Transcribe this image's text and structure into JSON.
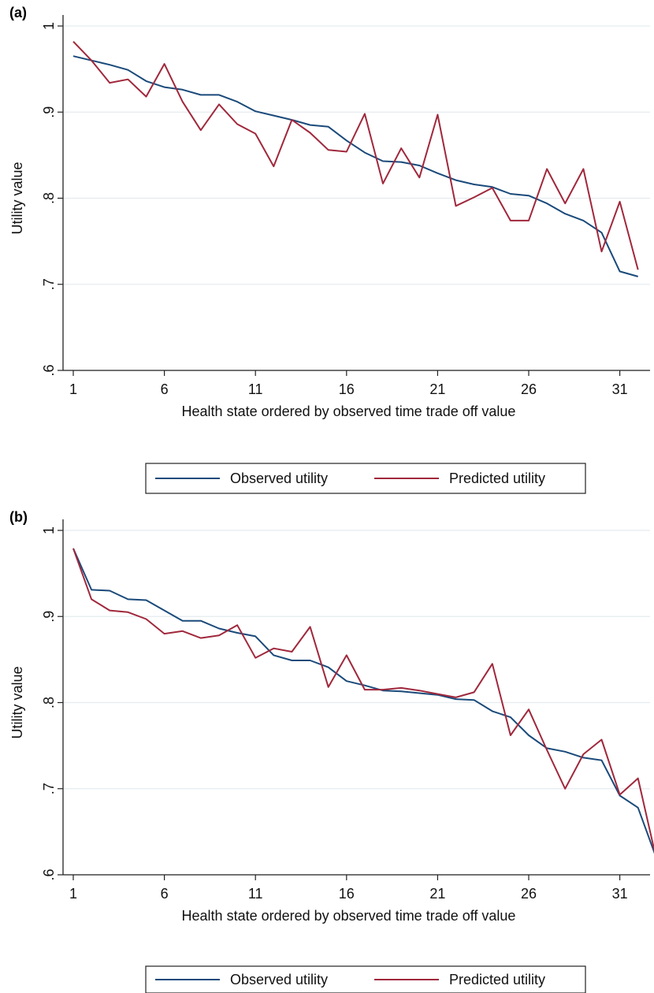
{
  "chart_data": [
    {
      "type": "line",
      "panel_label": "(a)",
      "xlabel": "Health state ordered by observed time trade off value",
      "ylabel": "Utility value",
      "xlim": [
        1,
        32
      ],
      "ylim": [
        0.6,
        1.0
      ],
      "x_ticks": [
        1,
        6,
        11,
        16,
        21,
        26,
        31
      ],
      "x_tick_labels": [
        "1",
        "6",
        "11",
        "16",
        "21",
        "26",
        "31"
      ],
      "y_ticks": [
        0.6,
        0.7,
        0.8,
        0.9,
        1.0
      ],
      "y_tick_labels": [
        ".6",
        ".7",
        ".8",
        ".9",
        "1"
      ],
      "grid": true,
      "legend_position": "bottom",
      "x": [
        1,
        2,
        3,
        4,
        5,
        6,
        7,
        8,
        9,
        10,
        11,
        12,
        13,
        14,
        15,
        16,
        17,
        18,
        19,
        20,
        21,
        22,
        23,
        24,
        25,
        26,
        27,
        28,
        29,
        30,
        31,
        32
      ],
      "series": [
        {
          "name": "Observed utility",
          "color": "#1a4a7a",
          "values": [
            0.965,
            0.96,
            0.955,
            0.949,
            0.936,
            0.929,
            0.926,
            0.92,
            0.92,
            0.912,
            0.901,
            0.896,
            0.891,
            0.885,
            0.883,
            0.867,
            0.853,
            0.843,
            0.842,
            0.838,
            0.829,
            0.821,
            0.816,
            0.813,
            0.805,
            0.803,
            0.794,
            0.782,
            0.774,
            0.76,
            0.715,
            0.709
          ]
        },
        {
          "name": "Predicted utility",
          "color": "#a0283c",
          "values": [
            0.982,
            0.96,
            0.934,
            0.938,
            0.918,
            0.956,
            0.912,
            0.879,
            0.909,
            0.886,
            0.875,
            0.837,
            0.891,
            0.876,
            0.856,
            0.854,
            0.898,
            0.817,
            0.858,
            0.824,
            0.897,
            0.791,
            0.801,
            0.812,
            0.774,
            0.774,
            0.834,
            0.794,
            0.834,
            0.738,
            0.796,
            0.717
          ]
        }
      ]
    },
    {
      "type": "line",
      "panel_label": "(b)",
      "xlabel": "Health state ordered by observed time trade off value",
      "ylabel": "Utility value",
      "xlim": [
        1,
        33
      ],
      "ylim": [
        0.6,
        1.0
      ],
      "x_ticks": [
        1,
        6,
        11,
        16,
        21,
        26,
        31
      ],
      "x_tick_labels": [
        "1",
        "6",
        "11",
        "16",
        "21",
        "26",
        "31"
      ],
      "y_ticks": [
        0.6,
        0.7,
        0.8,
        0.9,
        1.0
      ],
      "y_tick_labels": [
        ".6",
        ".7",
        ".8",
        ".9",
        "1"
      ],
      "grid": true,
      "legend_position": "bottom",
      "x": [
        1,
        2,
        3,
        4,
        5,
        6,
        7,
        8,
        9,
        10,
        11,
        12,
        13,
        14,
        15,
        16,
        17,
        18,
        19,
        20,
        21,
        22,
        23,
        24,
        25,
        26,
        27,
        28,
        29,
        30,
        31,
        32,
        33
      ],
      "series": [
        {
          "name": "Observed utility",
          "color": "#1a4a7a",
          "values": [
            0.979,
            0.931,
            0.93,
            0.92,
            0.919,
            0.907,
            0.895,
            0.895,
            0.886,
            0.881,
            0.877,
            0.855,
            0.849,
            0.849,
            0.841,
            0.825,
            0.82,
            0.814,
            0.813,
            0.811,
            0.809,
            0.804,
            0.803,
            0.79,
            0.783,
            0.762,
            0.747,
            0.743,
            0.736,
            0.733,
            0.692,
            0.678,
            0.62
          ]
        },
        {
          "name": "Predicted utility",
          "color": "#a0283c",
          "values": [
            0.979,
            0.92,
            0.907,
            0.905,
            0.897,
            0.88,
            0.883,
            0.875,
            0.878,
            0.89,
            0.852,
            0.863,
            0.859,
            0.888,
            0.818,
            0.855,
            0.815,
            0.815,
            0.817,
            0.814,
            0.81,
            0.806,
            0.812,
            0.845,
            0.762,
            0.792,
            0.745,
            0.7,
            0.74,
            0.757,
            0.693,
            0.712,
            0.619
          ]
        }
      ]
    }
  ]
}
